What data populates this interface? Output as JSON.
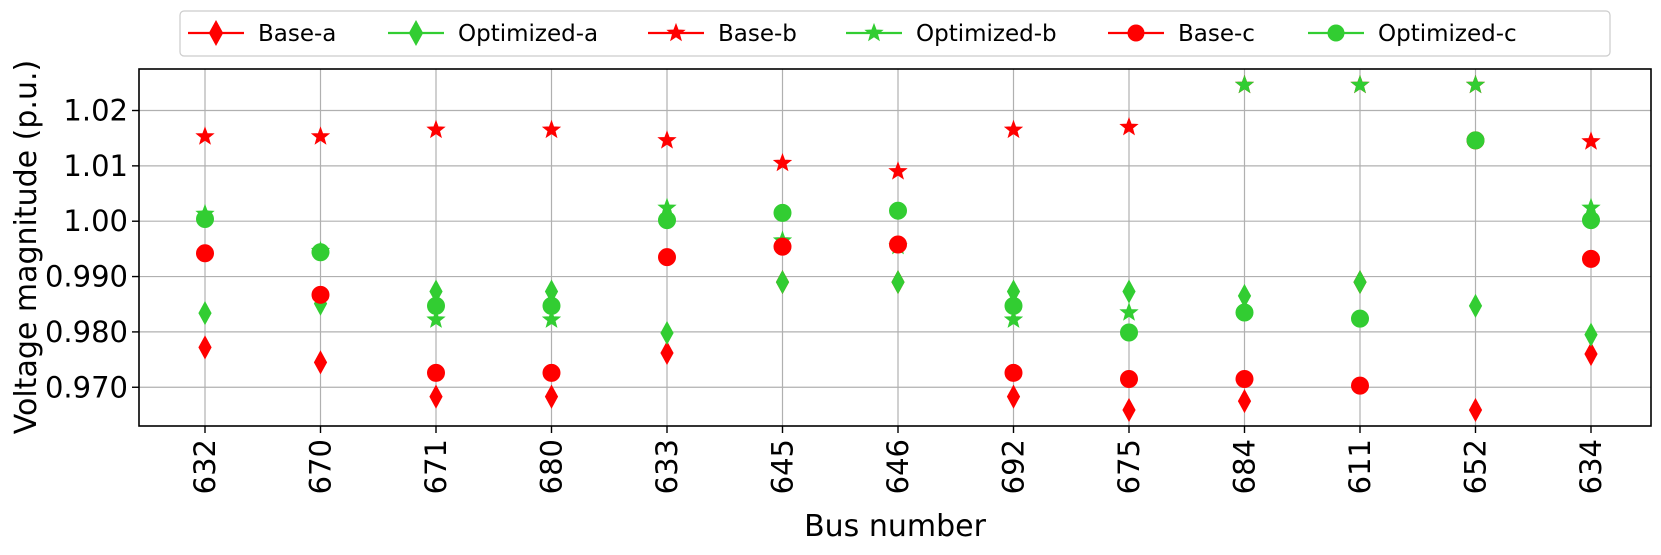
{
  "chart_data": {
    "type": "scatter",
    "xlabel": "Bus number",
    "ylabel": "Voltage magnitude (p.u.)",
    "ylim": [
      0.963,
      1.0275
    ],
    "yticks": [
      0.97,
      0.98,
      0.99,
      1.0,
      1.01,
      1.02
    ],
    "ytick_labels": [
      "0.970",
      "0.980",
      "0.990",
      "1.00",
      "1.01",
      "1.02"
    ],
    "grid": true,
    "legend_position": "top, outside plot area",
    "categories": [
      "632",
      "670",
      "671",
      "680",
      "633",
      "645",
      "646",
      "692",
      "675",
      "684",
      "611",
      "652",
      "634"
    ],
    "series": [
      {
        "name": "Base-a",
        "marker": "diamond",
        "color": "#ff0000",
        "values": [
          0.9772,
          0.9745,
          0.9683,
          0.9683,
          0.9762,
          0.989,
          0.989,
          0.9683,
          0.9659,
          0.9675,
          0.989,
          0.9659,
          0.976
        ]
      },
      {
        "name": "Optimized-a",
        "marker": "diamond",
        "color": "#32cd32",
        "values": [
          0.9834,
          0.9851,
          0.9873,
          0.9873,
          0.9798,
          0.989,
          0.989,
          0.9873,
          0.9873,
          0.9865,
          0.989,
          0.9847,
          0.9795
        ]
      },
      {
        "name": "Base-b",
        "marker": "star",
        "color": "#ff0000",
        "values": [
          1.0153,
          1.0153,
          1.0165,
          1.0165,
          1.0146,
          1.0105,
          1.009,
          1.0165,
          1.017,
          1.0246,
          1.0246,
          1.0246,
          1.0144
        ]
      },
      {
        "name": "Optimized-b",
        "marker": "star",
        "color": "#32cd32",
        "values": [
          1.0013,
          0.9946,
          0.9822,
          0.9822,
          1.0024,
          0.9965,
          0.9955,
          0.9822,
          0.9835,
          1.0246,
          1.0246,
          1.0246,
          1.0024
        ]
      },
      {
        "name": "Base-c",
        "marker": "circle",
        "color": "#ff0000",
        "values": [
          0.9942,
          0.9867,
          0.9726,
          0.9726,
          0.9935,
          0.9954,
          0.9958,
          0.9726,
          0.9715,
          0.9715,
          0.9703,
          1.0146,
          0.9932
        ]
      },
      {
        "name": "Optimized-c",
        "marker": "circle",
        "color": "#32cd32",
        "values": [
          1.0004,
          0.9944,
          0.9847,
          0.9847,
          1.0002,
          1.0015,
          1.0019,
          0.9847,
          0.9799,
          0.9835,
          0.9824,
          1.0146,
          1.0002
        ]
      }
    ]
  }
}
